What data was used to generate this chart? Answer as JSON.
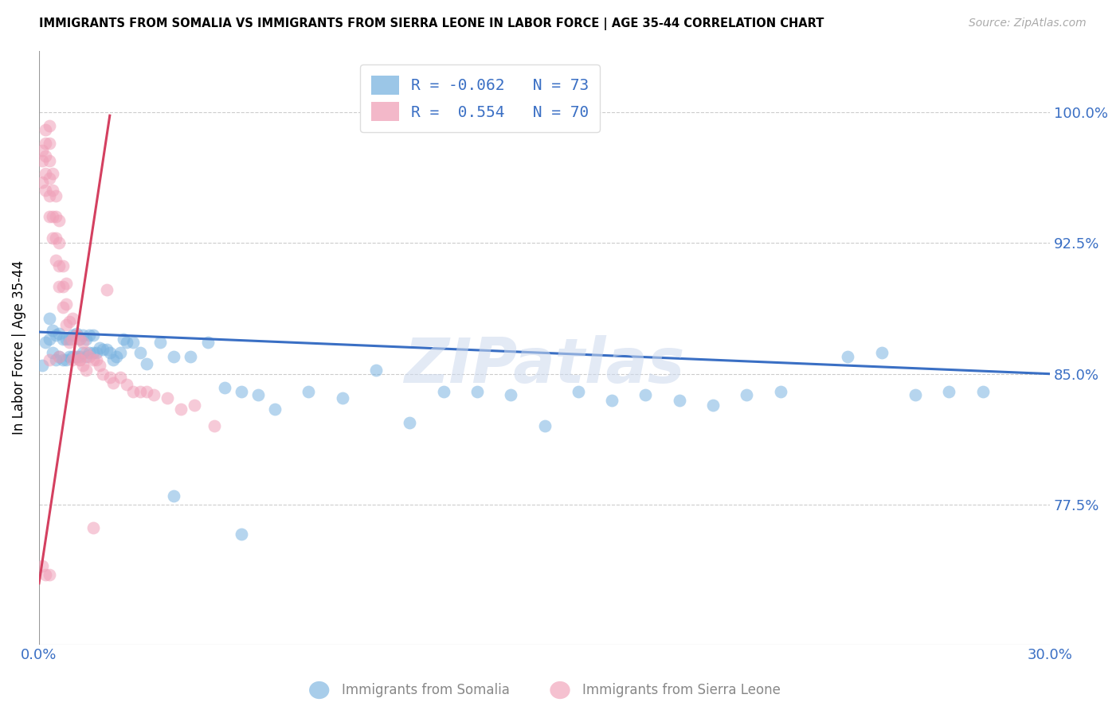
{
  "title": "IMMIGRANTS FROM SOMALIA VS IMMIGRANTS FROM SIERRA LEONE IN LABOR FORCE | AGE 35-44 CORRELATION CHART",
  "source": "Source: ZipAtlas.com",
  "ylabel": "In Labor Force | Age 35-44",
  "ytick_labels": [
    "100.0%",
    "92.5%",
    "85.0%",
    "77.5%"
  ],
  "ytick_values": [
    1.0,
    0.925,
    0.85,
    0.775
  ],
  "xmin": 0.0,
  "xmax": 0.3,
  "ymin": 0.695,
  "ymax": 1.035,
  "blue_color": "#7ab3e0",
  "pink_color": "#f0a0b8",
  "blue_line_color": "#3a6fc4",
  "pink_line_color": "#d44060",
  "legend_blue_R": "-0.062",
  "legend_blue_N": "73",
  "legend_pink_R": " 0.554",
  "legend_pink_N": "70",
  "watermark": "ZIPatlas",
  "blue_scatter_x": [
    0.001,
    0.002,
    0.003,
    0.003,
    0.004,
    0.004,
    0.005,
    0.005,
    0.006,
    0.006,
    0.007,
    0.007,
    0.008,
    0.008,
    0.009,
    0.009,
    0.01,
    0.01,
    0.011,
    0.011,
    0.012,
    0.012,
    0.013,
    0.013,
    0.014,
    0.014,
    0.015,
    0.015,
    0.016,
    0.016,
    0.017,
    0.018,
    0.019,
    0.02,
    0.021,
    0.022,
    0.023,
    0.024,
    0.025,
    0.026,
    0.028,
    0.03,
    0.032,
    0.036,
    0.04,
    0.045,
    0.05,
    0.055,
    0.06,
    0.065,
    0.07,
    0.08,
    0.09,
    0.1,
    0.11,
    0.12,
    0.13,
    0.14,
    0.15,
    0.16,
    0.17,
    0.18,
    0.19,
    0.2,
    0.21,
    0.22,
    0.24,
    0.25,
    0.26,
    0.27,
    0.04,
    0.06,
    0.28
  ],
  "blue_scatter_y": [
    0.855,
    0.868,
    0.87,
    0.882,
    0.862,
    0.875,
    0.858,
    0.872,
    0.86,
    0.873,
    0.858,
    0.87,
    0.858,
    0.87,
    0.86,
    0.87,
    0.86,
    0.872,
    0.86,
    0.873,
    0.86,
    0.87,
    0.862,
    0.872,
    0.86,
    0.87,
    0.862,
    0.872,
    0.862,
    0.872,
    0.862,
    0.865,
    0.864,
    0.864,
    0.862,
    0.858,
    0.86,
    0.862,
    0.87,
    0.868,
    0.868,
    0.862,
    0.856,
    0.868,
    0.86,
    0.86,
    0.868,
    0.842,
    0.84,
    0.838,
    0.83,
    0.84,
    0.836,
    0.852,
    0.822,
    0.84,
    0.84,
    0.838,
    0.82,
    0.84,
    0.835,
    0.838,
    0.835,
    0.832,
    0.838,
    0.84,
    0.86,
    0.862,
    0.838,
    0.84,
    0.78,
    0.758,
    0.84
  ],
  "pink_scatter_x": [
    0.001,
    0.001,
    0.001,
    0.002,
    0.002,
    0.002,
    0.002,
    0.002,
    0.003,
    0.003,
    0.003,
    0.003,
    0.003,
    0.003,
    0.004,
    0.004,
    0.004,
    0.004,
    0.005,
    0.005,
    0.005,
    0.005,
    0.006,
    0.006,
    0.006,
    0.006,
    0.007,
    0.007,
    0.007,
    0.008,
    0.008,
    0.008,
    0.009,
    0.009,
    0.01,
    0.01,
    0.01,
    0.011,
    0.011,
    0.012,
    0.012,
    0.013,
    0.013,
    0.014,
    0.014,
    0.015,
    0.016,
    0.017,
    0.018,
    0.019,
    0.02,
    0.021,
    0.022,
    0.024,
    0.026,
    0.028,
    0.03,
    0.032,
    0.034,
    0.038,
    0.042,
    0.046,
    0.052,
    0.002,
    0.003,
    0.016,
    0.001,
    0.003,
    0.006,
    0.012
  ],
  "pink_scatter_y": [
    0.96,
    0.972,
    0.978,
    0.955,
    0.965,
    0.975,
    0.982,
    0.99,
    0.94,
    0.952,
    0.962,
    0.972,
    0.982,
    0.992,
    0.928,
    0.94,
    0.955,
    0.965,
    0.915,
    0.928,
    0.94,
    0.952,
    0.9,
    0.912,
    0.925,
    0.938,
    0.888,
    0.9,
    0.912,
    0.878,
    0.89,
    0.902,
    0.868,
    0.88,
    0.858,
    0.87,
    0.882,
    0.86,
    0.872,
    0.858,
    0.87,
    0.855,
    0.868,
    0.852,
    0.862,
    0.86,
    0.858,
    0.858,
    0.855,
    0.85,
    0.898,
    0.848,
    0.845,
    0.848,
    0.844,
    0.84,
    0.84,
    0.84,
    0.838,
    0.836,
    0.83,
    0.832,
    0.82,
    0.735,
    0.735,
    0.762,
    0.74,
    0.858,
    0.86,
    0.858
  ],
  "blue_line_x": [
    0.0,
    0.3
  ],
  "blue_line_y": [
    0.874,
    0.85
  ],
  "pink_line_x": [
    0.0,
    0.021
  ],
  "pink_line_y": [
    0.73,
    0.998
  ]
}
